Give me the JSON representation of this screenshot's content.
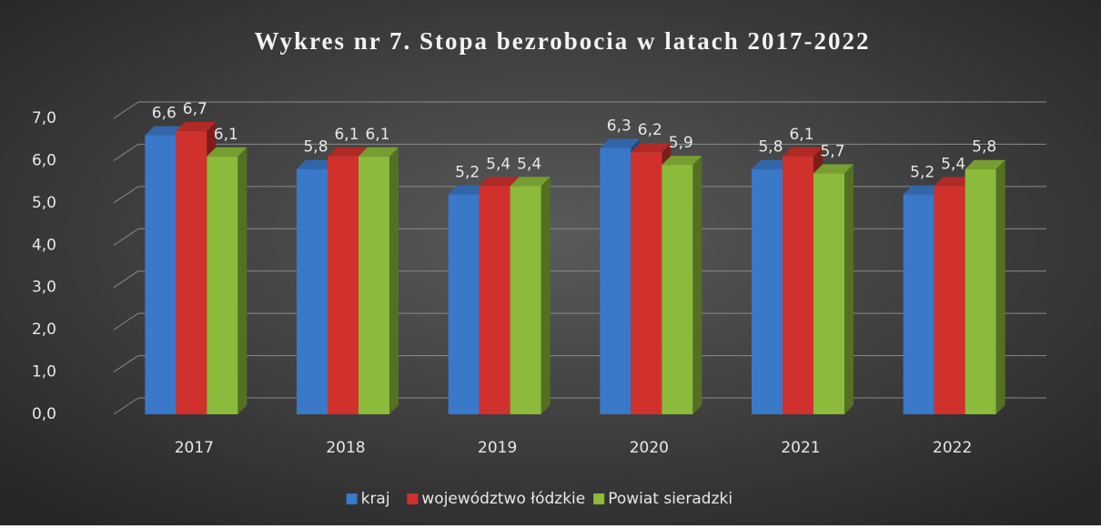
{
  "chart_data": {
    "type": "bar",
    "title": "Wykres nr 7. Stopa bezrobocia w latach 2017-2022",
    "categories": [
      "2017",
      "2018",
      "2019",
      "2020",
      "2021",
      "2022"
    ],
    "series": [
      {
        "name": "kraj",
        "color": "#3a78c9",
        "values": [
          6.6,
          5.8,
          5.2,
          6.3,
          5.8,
          5.2
        ],
        "value_labels": [
          "6,6",
          "5,8",
          "5,2",
          "6,3",
          "5,8",
          "5,2"
        ]
      },
      {
        "name": "województwo łódzkie",
        "color": "#d0312d",
        "values": [
          6.7,
          6.1,
          5.4,
          6.2,
          6.1,
          5.4
        ],
        "value_labels": [
          "6,7",
          "6,1",
          "5,4",
          "6,2",
          "6,1",
          "5,4"
        ]
      },
      {
        "name": "Powiat sieradzki",
        "color": "#8cba3a",
        "values": [
          6.1,
          6.1,
          5.4,
          5.9,
          5.7,
          5.8
        ],
        "value_labels": [
          "6,1",
          "6,1",
          "5,4",
          "5,9",
          "5,7",
          "5,8"
        ]
      }
    ],
    "ylim": [
      0,
      7
    ],
    "yticks": [
      {
        "value": 0,
        "label": "0,0"
      },
      {
        "value": 1,
        "label": "1,0"
      },
      {
        "value": 2,
        "label": "2,0"
      },
      {
        "value": 3,
        "label": "3,0"
      },
      {
        "value": 4,
        "label": "4,0"
      },
      {
        "value": 5,
        "label": "5,0"
      },
      {
        "value": 6,
        "label": "6,0"
      },
      {
        "value": 7,
        "label": "7,0"
      }
    ],
    "grid": true,
    "legend": "bottom"
  }
}
